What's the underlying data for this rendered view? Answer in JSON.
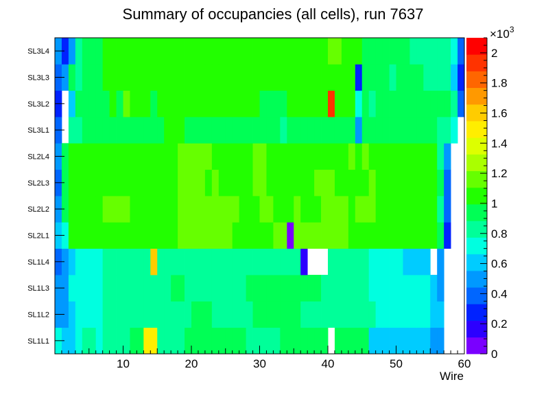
{
  "chart_data": {
    "type": "heatmap",
    "title": "Summary of occupancies (all cells),      run 7637",
    "xlabel": "Wire",
    "ylabel": "",
    "x_range": [
      0,
      60
    ],
    "x_ticks": [
      10,
      20,
      30,
      40,
      50,
      60
    ],
    "y_categories": [
      "SL1L1",
      "SL1L2",
      "SL1L3",
      "SL1L4",
      "SL2L1",
      "SL2L2",
      "SL2L3",
      "SL2L4",
      "SL3L1",
      "SL3L2",
      "SL3L3",
      "SL3L4"
    ],
    "colorbar": {
      "min": 0,
      "max": 2.1,
      "exponent_label": "×10",
      "exponent_power": "3",
      "ticks": [
        "0",
        "0.2",
        "0.4",
        "0.6",
        "0.8",
        "1",
        "1.2",
        "1.4",
        "1.6",
        "1.8",
        "2"
      ],
      "tick_values": [
        0,
        0.2,
        0.4,
        0.6,
        0.8,
        1.0,
        1.2,
        1.4,
        1.6,
        1.8,
        2.0
      ],
      "palette": [
        "#7a00ff",
        "#2c00ff",
        "#0022ff",
        "#0066ff",
        "#0099ff",
        "#00ccff",
        "#00ffe0",
        "#00ff99",
        "#00ff55",
        "#22ff00",
        "#66ff00",
        "#aaff00",
        "#ddff00",
        "#ffee00",
        "#ffcc00",
        "#ff9900",
        "#ff6600",
        "#ff3300",
        "#ff0000"
      ]
    },
    "z_units": "thousands",
    "rows": [
      {
        "layer": "SL1L1",
        "values": [
          0.75,
          0.6,
          0.6,
          0.75,
          0.8,
          0.8,
          0.75,
          0.85,
          0.85,
          0.8,
          0.8,
          0.95,
          0.9,
          1.5,
          1.5,
          0.85,
          0.85,
          0.85,
          0.85,
          0.9,
          0.9,
          0.9,
          0.9,
          0.9,
          0.9,
          0.9,
          0.9,
          0.9,
          0.85,
          0.85,
          0.85,
          0.85,
          0.85,
          0.9,
          0.9,
          0.9,
          0.9,
          0.9,
          0.9,
          0.9,
          null,
          0.9,
          0.9,
          0.9,
          0.9,
          0.9,
          0.65,
          0.65,
          0.65,
          0.65,
          0.65,
          0.6,
          0.6,
          0.6,
          0.6,
          0.5,
          0.5,
          null,
          null,
          null
        ]
      },
      {
        "layer": "SL1L2",
        "values": [
          0.45,
          0.55,
          0.65,
          0.7,
          0.7,
          0.75,
          0.75,
          0.8,
          0.8,
          0.8,
          0.8,
          0.8,
          0.8,
          0.8,
          0.8,
          0.8,
          0.8,
          0.85,
          0.85,
          0.85,
          0.95,
          0.95,
          0.95,
          0.85,
          0.85,
          0.85,
          0.85,
          0.85,
          0.85,
          0.95,
          0.95,
          0.95,
          0.95,
          0.95,
          0.9,
          0.9,
          0.85,
          0.85,
          0.85,
          0.85,
          0.85,
          0.85,
          0.85,
          0.85,
          0.8,
          0.8,
          0.8,
          0.75,
          0.75,
          0.75,
          0.75,
          0.75,
          0.75,
          0.75,
          0.7,
          0.65,
          0.65,
          null,
          null,
          null
        ]
      },
      {
        "layer": "SL1L3",
        "values": [
          0.45,
          0.55,
          0.7,
          0.7,
          0.75,
          0.75,
          0.75,
          0.8,
          0.8,
          0.8,
          0.8,
          0.85,
          0.85,
          0.85,
          0.85,
          0.85,
          0.85,
          0.9,
          0.9,
          0.85,
          0.85,
          0.85,
          0.85,
          0.85,
          0.85,
          0.85,
          0.85,
          0.85,
          0.95,
          0.95,
          0.95,
          0.95,
          0.95,
          0.95,
          0.9,
          0.9,
          0.9,
          0.9,
          0.9,
          0.85,
          0.85,
          0.85,
          0.85,
          0.85,
          0.8,
          0.8,
          0.75,
          0.75,
          0.75,
          0.75,
          0.75,
          0.75,
          0.7,
          0.7,
          0.7,
          0.6,
          0.55,
          null,
          null,
          null
        ]
      },
      {
        "layer": "SL1L4",
        "values": [
          0.4,
          0.55,
          0.65,
          0.7,
          0.75,
          0.75,
          0.75,
          0.8,
          0.8,
          0.8,
          0.8,
          0.8,
          0.8,
          0.8,
          1.6,
          0.85,
          0.8,
          0.8,
          0.8,
          0.8,
          0.85,
          0.85,
          0.85,
          0.85,
          0.85,
          0.85,
          0.85,
          0.8,
          0.8,
          0.85,
          0.85,
          0.8,
          0.85,
          0.85,
          0.85,
          0.85,
          0.2,
          null,
          null,
          null,
          0.8,
          0.8,
          0.8,
          0.8,
          0.8,
          0.8,
          0.7,
          0.7,
          0.7,
          0.7,
          0.7,
          0.65,
          0.65,
          0.6,
          0.6,
          null,
          0.55,
          null,
          null,
          null
        ]
      },
      {
        "layer": "SL2L1",
        "values": [
          0.6,
          0.75,
          1.05,
          1.05,
          1.05,
          1.1,
          1.1,
          1.1,
          1.1,
          1.1,
          1.1,
          1.1,
          1.1,
          1.1,
          1.1,
          1.1,
          1.1,
          1.1,
          1.2,
          1.2,
          1.2,
          1.2,
          1.2,
          1.2,
          1.2,
          1.2,
          1.1,
          1.1,
          1.1,
          1.1,
          1.1,
          1.1,
          1.15,
          1.15,
          0.1,
          1.15,
          1.2,
          1.2,
          1.2,
          1.15,
          1.15,
          1.15,
          1.15,
          1.1,
          1.1,
          1.1,
          1.1,
          1.1,
          1.1,
          1.1,
          1.1,
          1.1,
          1.1,
          1.1,
          1.05,
          1.05,
          0.9,
          0.3,
          null,
          null
        ]
      },
      {
        "layer": "SL2L2",
        "values": [
          0.45,
          0.9,
          1.05,
          1.05,
          1.1,
          1.1,
          1.1,
          1.15,
          1.15,
          1.15,
          1.15,
          1.1,
          1.1,
          1.1,
          1.1,
          1.1,
          1.1,
          1.1,
          1.15,
          1.15,
          1.2,
          1.2,
          1.2,
          1.2,
          1.15,
          1.15,
          1.15,
          1.1,
          1.1,
          1.1,
          1.15,
          1.15,
          1.1,
          1.1,
          1.1,
          1.15,
          1.1,
          1.1,
          1.1,
          1.15,
          1.15,
          1.15,
          1.15,
          1.1,
          1.2,
          1.2,
          1.15,
          1.1,
          1.1,
          1.1,
          1.1,
          1.05,
          1.05,
          1.05,
          1.05,
          1.05,
          0.85,
          0.35,
          null,
          null
        ]
      },
      {
        "layer": "SL2L3",
        "values": [
          0.4,
          0.95,
          1.05,
          1.05,
          1.1,
          1.1,
          1.1,
          1.1,
          1.1,
          1.1,
          1.1,
          1.1,
          1.1,
          1.1,
          1.1,
          1.1,
          1.1,
          1.1,
          1.15,
          1.15,
          1.2,
          1.2,
          1.1,
          1.2,
          1.1,
          1.1,
          1.1,
          1.1,
          1.1,
          1.15,
          1.15,
          1.1,
          1.1,
          1.1,
          1.1,
          1.1,
          1.1,
          1.1,
          1.15,
          1.15,
          1.15,
          1.1,
          1.1,
          1.1,
          1.1,
          1.1,
          1.15,
          1.1,
          1.1,
          1.1,
          1.1,
          1.1,
          1.1,
          1.05,
          1.05,
          1.05,
          0.9,
          0.35,
          null,
          null
        ]
      },
      {
        "layer": "SL2L4",
        "values": [
          0.5,
          0.95,
          1.0,
          1.0,
          1.1,
          1.1,
          1.1,
          1.1,
          1.1,
          1.1,
          1.1,
          1.1,
          1.1,
          1.1,
          1.1,
          1.1,
          1.1,
          1.1,
          1.2,
          1.2,
          1.2,
          1.2,
          1.2,
          1.1,
          1.1,
          1.1,
          1.1,
          1.1,
          1.1,
          1.15,
          1.15,
          1.1,
          1.1,
          1.1,
          1.1,
          1.1,
          1.1,
          1.1,
          1.1,
          1.1,
          1.1,
          1.1,
          1.1,
          1.15,
          1.1,
          1.2,
          1.1,
          1.1,
          1.1,
          1.05,
          1.05,
          1.05,
          1.05,
          1.05,
          1.05,
          1.0,
          0.85,
          0.5,
          null,
          null
        ]
      },
      {
        "layer": "SL3L1",
        "values": [
          0.4,
          null,
          0.8,
          0.8,
          0.9,
          0.95,
          0.95,
          0.95,
          0.9,
          0.9,
          0.95,
          0.95,
          0.95,
          0.9,
          0.9,
          0.9,
          1.0,
          1.0,
          1.0,
          0.9,
          0.9,
          0.95,
          0.95,
          0.95,
          0.95,
          0.9,
          0.95,
          0.95,
          0.95,
          0.95,
          0.95,
          0.9,
          0.9,
          0.85,
          0.95,
          0.95,
          0.9,
          0.9,
          0.9,
          0.9,
          0.95,
          0.95,
          0.9,
          0.9,
          0.55,
          0.9,
          0.9,
          0.9,
          0.9,
          0.95,
          0.9,
          0.9,
          0.9,
          0.9,
          0.9,
          0.9,
          0.85,
          0.85,
          0.7,
          null
        ]
      },
      {
        "layer": "SL3L2",
        "values": [
          0.3,
          null,
          0.6,
          0.9,
          0.9,
          0.95,
          0.95,
          0.9,
          1.05,
          0.95,
          1.15,
          1.0,
          1.0,
          1.0,
          0.95,
          1.05,
          1.0,
          1.0,
          1.05,
          1.05,
          1.0,
          1.0,
          1.0,
          1.0,
          1.0,
          1.0,
          1.0,
          1.0,
          1.0,
          1.0,
          0.95,
          0.95,
          0.95,
          0.95,
          1.0,
          1.0,
          1.0,
          1.0,
          1.0,
          1.0,
          1.95,
          1.0,
          1.0,
          1.0,
          0.75,
          0.9,
          0.85,
          0.9,
          0.9,
          0.9,
          0.9,
          0.9,
          0.9,
          0.9,
          0.9,
          0.9,
          0.9,
          0.9,
          0.8,
          0.4
        ]
      },
      {
        "layer": "SL3L3",
        "values": [
          0.4,
          0.5,
          0.9,
          0.8,
          0.95,
          0.95,
          0.95,
          1.0,
          1.0,
          1.0,
          1.05,
          1.05,
          1.05,
          1.05,
          1.0,
          1.0,
          1.05,
          1.05,
          1.05,
          1.05,
          1.05,
          1.05,
          1.0,
          1.0,
          1.0,
          1.05,
          1.05,
          1.05,
          1.05,
          1.05,
          1.05,
          1.05,
          1.05,
          1.05,
          1.05,
          1.1,
          1.05,
          1.05,
          1.05,
          1.05,
          1.1,
          1.05,
          1.05,
          1.05,
          0.25,
          0.95,
          0.95,
          0.9,
          0.9,
          0.85,
          0.9,
          0.9,
          0.9,
          0.9,
          0.85,
          0.85,
          0.8,
          0.8,
          0.65,
          0.3
        ]
      },
      {
        "layer": "SL3L4",
        "values": [
          0.55,
          0.3,
          0.55,
          0.85,
          0.9,
          0.9,
          0.95,
          1.0,
          1.0,
          1.0,
          1.0,
          1.05,
          1.05,
          1.05,
          1.0,
          1.0,
          1.05,
          1.05,
          1.05,
          1.05,
          1.05,
          1.05,
          1.0,
          1.0,
          1.0,
          1.0,
          1.05,
          1.05,
          1.05,
          1.0,
          1.0,
          1.05,
          1.05,
          1.0,
          1.05,
          1.05,
          1.0,
          1.0,
          1.05,
          1.05,
          1.2,
          1.2,
          1.1,
          1.1,
          1.05,
          0.95,
          0.95,
          0.9,
          0.9,
          0.9,
          0.9,
          0.9,
          0.85,
          0.85,
          0.85,
          0.85,
          0.85,
          0.8,
          0.7,
          0.4
        ]
      }
    ]
  }
}
